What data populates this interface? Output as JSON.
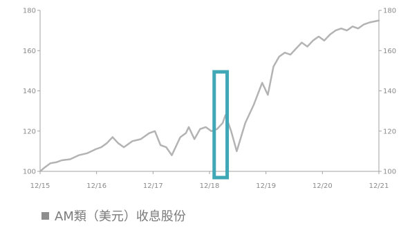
{
  "chart_data": {
    "type": "line",
    "title": "",
    "xlabel": "",
    "ylabel": "",
    "ylim": [
      100,
      180
    ],
    "y_ticks": [
      100,
      120,
      140,
      160,
      180
    ],
    "y_tick_labels": [
      "100",
      "120",
      "140",
      "160",
      "180"
    ],
    "right_axis_tick_labels": [
      "100",
      "120",
      "140",
      "160",
      "180"
    ],
    "xlim": [
      2015.917,
      2021.917
    ],
    "x_ticks": [
      2015.917,
      2016.917,
      2017.917,
      2018.917,
      2019.917,
      2020.917,
      2021.917
    ],
    "x_tick_labels": [
      "12/15",
      "12/16",
      "12/17",
      "12/18",
      "12/19",
      "12/20",
      "12/21"
    ],
    "grid": false,
    "legend_position": "bottom-left",
    "series": [
      {
        "name": "AM類（美元）收息股份",
        "color": "#b3b3b3",
        "x": [
          2015.917,
          2016.0,
          2016.1,
          2016.2,
          2016.3,
          2016.45,
          2016.6,
          2016.75,
          2016.9,
          2017.0,
          2017.1,
          2017.2,
          2017.3,
          2017.4,
          2017.55,
          2017.7,
          2017.85,
          2017.95,
          2018.05,
          2018.15,
          2018.25,
          2018.4,
          2018.5,
          2018.55,
          2018.65,
          2018.75,
          2018.85,
          2018.95,
          2019.05,
          2019.15,
          2019.2,
          2019.3,
          2019.4,
          2019.55,
          2019.7,
          2019.85,
          2019.95,
          2020.05,
          2020.15,
          2020.25,
          2020.35,
          2020.45,
          2020.55,
          2020.65,
          2020.75,
          2020.85,
          2020.95,
          2021.05,
          2021.15,
          2021.25,
          2021.35,
          2021.45,
          2021.55,
          2021.65,
          2021.75,
          2021.917
        ],
        "values": [
          100,
          102,
          104,
          104.5,
          105.5,
          106,
          108,
          109,
          111,
          112,
          114,
          117,
          114,
          112,
          115,
          116,
          119,
          120,
          113,
          112,
          108,
          117,
          119,
          122,
          116,
          121,
          122,
          120,
          121,
          124,
          128,
          120,
          110,
          124,
          133,
          144,
          138,
          152,
          157,
          159,
          158,
          161,
          164,
          162,
          165,
          167,
          165,
          168,
          170,
          171,
          170,
          172,
          171,
          173,
          174,
          175
        ]
      }
    ]
  },
  "highlight": {
    "color": "#3fa7b5",
    "x_from": 2019.0,
    "x_to": 2019.23
  },
  "legend": {
    "label": "AM類（美元）收息股份",
    "swatch_color": "#8e8e8e"
  }
}
